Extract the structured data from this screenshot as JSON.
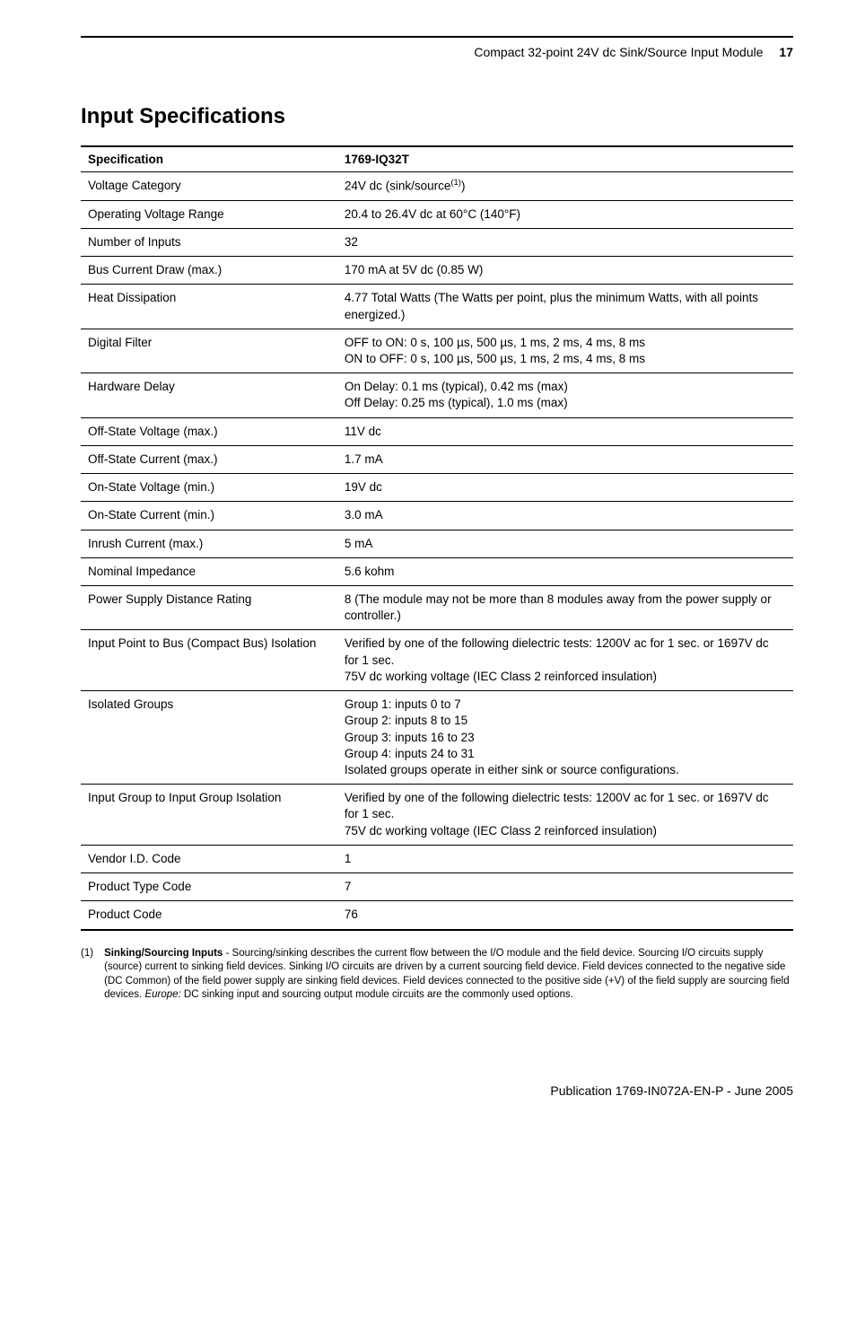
{
  "header": {
    "title": "Compact 32-point 24V dc Sink/Source Input Module",
    "page_number": "17"
  },
  "section_title": "Input Specifications",
  "table": {
    "headers": [
      "Specification",
      "1769-IQ32T"
    ],
    "rows": [
      {
        "spec": "Voltage Category",
        "val": "24V dc (sink/source<sup>(1)</sup>)"
      },
      {
        "spec": "Operating Voltage Range",
        "val": "20.4 to 26.4V dc at 60°C (140°F)"
      },
      {
        "spec": "Number of Inputs",
        "val": "32"
      },
      {
        "spec": "Bus Current Draw (max.)",
        "val": "170 mA at 5V dc (0.85 W)"
      },
      {
        "spec": "Heat Dissipation",
        "val": "4.77 Total Watts (The Watts per point, plus the minimum Watts, with all points energized.)"
      },
      {
        "spec": "Digital Filter",
        "val": "OFF to ON: 0 s, 100 µs, 500 µs, 1 ms, 2 ms, 4 ms, 8 ms<br>ON to OFF: 0 s, 100 µs, 500 µs, 1 ms, 2 ms, 4 ms, 8 ms"
      },
      {
        "spec": "Hardware Delay",
        "val": "On Delay: 0.1 ms (typical), 0.42 ms (max)<br>Off Delay: 0.25 ms (typical), 1.0 ms (max)"
      },
      {
        "spec": "Off-State Voltage (max.)",
        "val": "11V dc"
      },
      {
        "spec": "Off-State Current (max.)",
        "val": "1.7 mA"
      },
      {
        "spec": "On-State Voltage (min.)",
        "val": "19V dc"
      },
      {
        "spec": "On-State Current (min.)",
        "val": "3.0 mA"
      },
      {
        "spec": "Inrush Current (max.)",
        "val": "5 mA"
      },
      {
        "spec": "Nominal Impedance",
        "val": "5.6 kohm"
      },
      {
        "spec": "Power Supply Distance Rating",
        "val": "8 (The module may not be more than 8 modules away from the power supply or controller.)"
      },
      {
        "spec": "Input Point to Bus (Compact Bus) Isolation",
        "val": "Verified by one of the following dielectric tests: 1200V ac for 1 sec. or 1697V dc for 1 sec.<br>75V dc working voltage (IEC Class 2 reinforced insulation)"
      },
      {
        "spec": "Isolated Groups",
        "val": "Group 1: inputs 0 to 7<br>Group 2: inputs 8 to 15<br>Group 3: inputs 16 to 23<br>Group 4: inputs 24 to 31<br>Isolated groups operate in either sink or source configurations."
      },
      {
        "spec": "Input Group to Input Group Isolation",
        "val": "Verified by one of the following dielectric tests: 1200V ac for 1 sec. or 1697V dc for 1 sec.<br>75V dc working voltage (IEC Class 2 reinforced insulation)"
      },
      {
        "spec": "Vendor I.D. Code",
        "val": "1"
      },
      {
        "spec": "Product Type Code",
        "val": "7"
      },
      {
        "spec": "Product Code",
        "val": "76"
      }
    ]
  },
  "footnote": {
    "marker": "(1)",
    "bold": "Sinking/Sourcing Inputs",
    "text1": " - Sourcing/sinking describes the current flow between the I/O module and the field device. Sourcing I/O circuits supply (source) current to sinking field devices. Sinking I/O circuits are driven by a current sourcing field device. Field devices connected to the negative side (DC Common) of the field power supply are sinking field devices. Field devices connected to the positive side (+V) of the field supply are sourcing field devices. ",
    "ital": "Europe:",
    "text2": " DC sinking input and sourcing output module circuits are the commonly used options."
  },
  "footer": {
    "pub": "Publication 1769-IN072A-EN-P - June 2005"
  }
}
